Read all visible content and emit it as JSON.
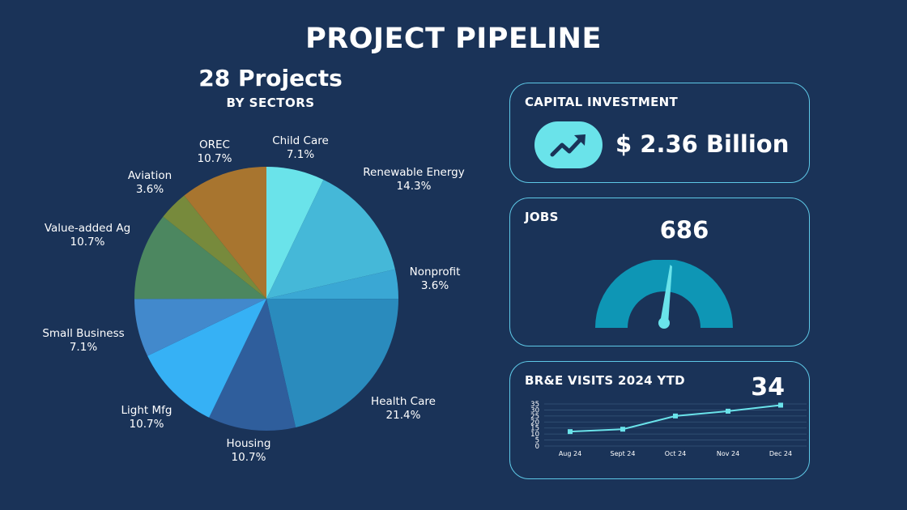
{
  "page": {
    "title": "PROJECT PIPELINE"
  },
  "colors": {
    "background": "#1a3358",
    "card_border": "#5ec8e6",
    "accent": "#6ae3ea",
    "gauge_fill": "#0e96b5"
  },
  "pie_section": {
    "title": "28 Projects",
    "subtitle": "BY SECTORS"
  },
  "capital": {
    "label": "CAPITAL INVESTMENT",
    "value": "$ 2.36 Billion",
    "icon": "trending-up-icon"
  },
  "jobs": {
    "label": "JOBS",
    "value": "686"
  },
  "visits": {
    "label": "BR&E  VISITS 2024 YTD",
    "value": "34"
  },
  "chart_data": [
    {
      "type": "pie",
      "title": "",
      "slices": [
        {
          "label": "Child Care",
          "pct_label": "7.1%",
          "value": 7.1,
          "color": "#6ae3ea"
        },
        {
          "label": "Renewable Energy",
          "pct_label": "14.3%",
          "value": 14.3,
          "color": "#45b8d8"
        },
        {
          "label": "Nonprofit",
          "pct_label": "3.6%",
          "value": 3.6,
          "color": "#3aa7d4"
        },
        {
          "label": "Health Care",
          "pct_label": "21.4%",
          "value": 21.4,
          "color": "#2a8bbd"
        },
        {
          "label": "Housing",
          "pct_label": "10.7%",
          "value": 10.7,
          "color": "#2f5e9c"
        },
        {
          "label": "Light Mfg",
          "pct_label": "10.7%",
          "value": 10.7,
          "color": "#36b1f5"
        },
        {
          "label": "Small Business",
          "pct_label": "7.1%",
          "value": 7.1,
          "color": "#4289cc"
        },
        {
          "label": "Value-added Ag",
          "pct_label": "10.7%",
          "value": 10.7,
          "color": "#4c8760"
        },
        {
          "label": "Aviation",
          "pct_label": "3.6%",
          "value": 3.6,
          "color": "#778a3c"
        },
        {
          "label": "OREC",
          "pct_label": "10.7%",
          "value": 10.7,
          "color": "#a8752f"
        }
      ]
    },
    {
      "type": "line",
      "title": "",
      "categories": [
        "Aug 24",
        "Sept 24",
        "Oct 24",
        "Nov 24",
        "Dec 24"
      ],
      "series": [
        {
          "values": [
            12,
            14,
            25,
            29,
            34
          ]
        }
      ],
      "ylim": [
        0,
        35
      ],
      "yticks": [
        0,
        5,
        10,
        15,
        20,
        25,
        30,
        35
      ],
      "grid": true
    }
  ]
}
